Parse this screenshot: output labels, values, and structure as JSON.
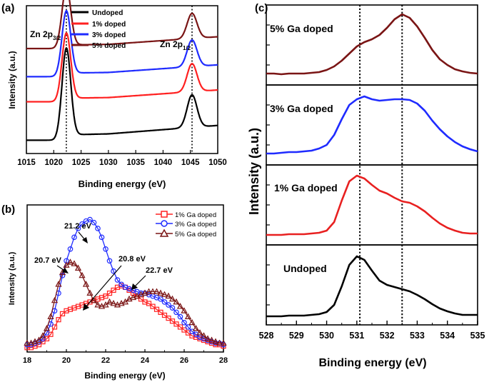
{
  "colors": {
    "black": "#000000",
    "red": "#ff2020",
    "blue": "#1f2bff",
    "darkred": "#7a1515",
    "panel_c_1": "#e82020",
    "panel_c_3": "#1f2bff",
    "panel_c_5": "#7a1515"
  },
  "chart_data": [
    {
      "panel": "(a)",
      "type": "line",
      "xlabel": "Binding energy (eV)",
      "ylabel": "Intensity (a.u.)",
      "xlim": [
        1015,
        1050
      ],
      "xticks": [
        1015,
        1020,
        1025,
        1030,
        1035,
        1040,
        1045,
        1050
      ],
      "ylim": [
        0,
        100
      ],
      "vlines": [
        1022.3,
        1045.3
      ],
      "annotations": [
        "Zn 2p3/2",
        "Zn 2p1/2"
      ],
      "legend": [
        "Undoped",
        "1% doped",
        "3% doped",
        "5% doped"
      ],
      "series": [
        {
          "name": "Undoped",
          "color": "#000000",
          "baseline": 9,
          "rise": 6,
          "peak1": 60,
          "peak2": 22
        },
        {
          "name": "1% doped",
          "color": "#ff2020",
          "baseline": 35,
          "rise": 4,
          "peak1": 45,
          "peak2": 19
        },
        {
          "name": "3% doped",
          "color": "#1f2bff",
          "baseline": 52,
          "rise": 4,
          "peak1": 43,
          "peak2": 18
        },
        {
          "name": "5% doped",
          "color": "#7a1515",
          "baseline": 71,
          "rise": 4,
          "peak1": 40,
          "peak2": 17
        }
      ]
    },
    {
      "panel": "(b)",
      "type": "line",
      "xlabel": "Binding energy (eV)",
      "ylabel": "Intensity (a.u.)",
      "xlim": [
        18,
        28
      ],
      "xticks": [
        18,
        20,
        22,
        24,
        26,
        28
      ],
      "ylim": [
        0,
        100
      ],
      "annotations": [
        "21.2 eV",
        "20.7 eV",
        "20.8 eV",
        "22.7 eV"
      ],
      "legend": [
        "1% Ga doped",
        "3% Ga doped",
        "5% Ga doped"
      ],
      "x": [
        18,
        18.2,
        18.4,
        18.6,
        18.8,
        19,
        19.2,
        19.4,
        19.6,
        19.8,
        20,
        20.2,
        20.4,
        20.6,
        20.8,
        21,
        21.2,
        21.4,
        21.6,
        21.8,
        22,
        22.2,
        22.4,
        22.6,
        22.8,
        23,
        23.2,
        23.4,
        23.6,
        23.8,
        24,
        24.2,
        24.4,
        24.6,
        24.8,
        25,
        25.2,
        25.4,
        25.6,
        25.8,
        26,
        26.2,
        26.4,
        26.6,
        26.8,
        27,
        27.2,
        27.4,
        27.6,
        27.8,
        28
      ],
      "series": [
        {
          "name": "1% Ga doped",
          "color": "#ff2020",
          "marker": "square",
          "values": [
            3,
            3,
            4,
            5,
            7,
            9,
            12,
            17,
            22,
            26,
            28,
            29,
            30,
            31,
            32,
            33,
            34,
            35,
            36,
            37,
            38,
            40,
            42,
            44,
            45,
            44,
            42,
            40,
            38,
            36,
            34,
            33,
            31,
            29,
            27,
            25,
            23,
            21,
            19,
            17,
            15,
            13,
            11,
            10,
            9,
            8,
            7,
            6,
            5,
            5,
            4
          ]
        },
        {
          "name": "3% Ga doped",
          "color": "#1f2bff",
          "marker": "circle",
          "values": [
            5,
            5,
            6,
            7,
            9,
            13,
            19,
            28,
            40,
            52,
            62,
            70,
            78,
            84,
            87,
            89,
            90,
            88,
            84,
            78,
            70,
            62,
            55,
            49,
            46,
            44,
            43,
            42,
            41,
            40,
            40,
            39,
            38,
            37,
            36,
            34,
            32,
            30,
            27,
            24,
            20,
            17,
            14,
            12,
            10,
            9,
            8,
            7,
            6,
            6,
            5
          ]
        },
        {
          "name": "5% Ga doped",
          "color": "#7a1515",
          "marker": "triangle",
          "values": [
            6,
            6,
            7,
            8,
            11,
            16,
            24,
            35,
            46,
            54,
            59,
            61,
            60,
            57,
            52,
            46,
            40,
            35,
            32,
            31,
            32,
            34,
            33,
            32,
            33,
            34,
            36,
            37,
            38,
            39,
            40,
            41,
            41,
            41,
            40,
            39,
            38,
            36,
            34,
            31,
            28,
            24,
            20,
            16,
            13,
            11,
            9,
            8,
            7,
            6,
            6
          ]
        }
      ]
    },
    {
      "panel": "(c)",
      "type": "line",
      "xlabel": "Binding energy (eV)",
      "ylabel": "Intensity (a.u.)",
      "xlim": [
        528,
        535
      ],
      "xticks": [
        528,
        529,
        530,
        531,
        532,
        533,
        534,
        535
      ],
      "vlines": [
        531.1,
        532.5
      ],
      "subpanels": [
        {
          "label": "5% Ga doped",
          "color": "#7a1515",
          "x": [
            528,
            528.25,
            528.5,
            528.75,
            529,
            529.25,
            529.5,
            529.75,
            530,
            530.25,
            530.5,
            530.75,
            531,
            531.25,
            531.5,
            531.75,
            532,
            532.25,
            532.5,
            532.75,
            533,
            533.25,
            533.5,
            533.75,
            534,
            534.25,
            534.5,
            534.75,
            535
          ],
          "values": [
            12,
            12,
            11,
            12,
            12,
            12,
            13,
            14,
            17,
            22,
            30,
            40,
            50,
            56,
            60,
            66,
            76,
            88,
            95,
            90,
            78,
            62,
            45,
            32,
            24,
            18,
            15,
            13,
            12
          ]
        },
        {
          "label": "3% Ga doped",
          "color": "#1f2bff",
          "x": [
            528,
            528.25,
            528.5,
            528.75,
            529,
            529.25,
            529.5,
            529.75,
            530,
            530.25,
            530.5,
            530.75,
            531,
            531.25,
            531.5,
            531.75,
            532,
            532.25,
            532.5,
            532.75,
            533,
            533.25,
            533.5,
            533.75,
            534,
            534.25,
            534.5,
            534.75,
            535
          ],
          "values": [
            12,
            12,
            13,
            14,
            14,
            15,
            16,
            19,
            24,
            38,
            60,
            80,
            88,
            92,
            88,
            86,
            87,
            88,
            88,
            87,
            82,
            72,
            58,
            46,
            36,
            28,
            22,
            18,
            15
          ]
        },
        {
          "label": "1% Ga doped",
          "color": "#e82020",
          "x": [
            528,
            528.25,
            528.5,
            528.75,
            529,
            529.25,
            529.5,
            529.75,
            530,
            530.25,
            530.5,
            530.75,
            531,
            531.25,
            531.5,
            531.75,
            532,
            532.25,
            532.5,
            532.75,
            533,
            533.25,
            533.5,
            533.75,
            534,
            534.25,
            534.5,
            534.75,
            535
          ],
          "values": [
            10,
            10,
            10,
            11,
            11,
            11,
            12,
            13,
            16,
            28,
            58,
            85,
            93,
            89,
            80,
            72,
            68,
            62,
            57,
            55,
            50,
            43,
            34,
            26,
            20,
            16,
            13,
            12,
            12
          ]
        },
        {
          "label": "Undoped",
          "color": "#000000",
          "x": [
            528,
            528.25,
            528.5,
            528.75,
            529,
            529.25,
            529.5,
            529.75,
            530,
            530.25,
            530.5,
            530.75,
            531,
            531.25,
            531.5,
            531.75,
            532,
            532.25,
            532.5,
            532.75,
            533,
            533.25,
            533.5,
            533.75,
            534,
            534.25,
            534.5,
            534.75,
            535
          ],
          "values": [
            8,
            8,
            8,
            9,
            9,
            9,
            10,
            11,
            14,
            24,
            50,
            80,
            92,
            87,
            72,
            58,
            52,
            49,
            46,
            43,
            38,
            32,
            25,
            19,
            15,
            12,
            10,
            10,
            10
          ]
        }
      ]
    }
  ],
  "labels": {
    "a_panel": "(a)",
    "b_panel": "(b)",
    "c_panel": "(c)",
    "a_zn32_main": "Zn 2p",
    "a_zn32_sub": "3/2",
    "a_zn12_main": "Zn 2p",
    "a_zn12_sub": "1/2",
    "a_leg_0": "Undoped",
    "a_leg_1": "1% doped",
    "a_leg_2": "3% doped",
    "a_leg_3": "5% doped",
    "a_xlabel": "Binding energy (eV)",
    "a_ylabel": "Intensity (a.u.)",
    "b_leg_0": "1% Ga doped",
    "b_leg_1": "3% Ga doped",
    "b_leg_2": "5% Ga doped",
    "b_ann_212": "21.2 eV",
    "b_ann_207": "20.7 eV",
    "b_ann_208": "20.8 eV",
    "b_ann_227": "22.7 eV",
    "b_xlabel": "Binding energy (eV)",
    "b_ylabel": "Intensity (a.u.)",
    "c_sub_0": "5% Ga doped",
    "c_sub_1": "3% Ga doped",
    "c_sub_2": "1% Ga doped",
    "c_sub_3": "Undoped",
    "c_xlabel": "Binding energy (eV)",
    "c_ylabel": "Intensity (a.u.)"
  }
}
